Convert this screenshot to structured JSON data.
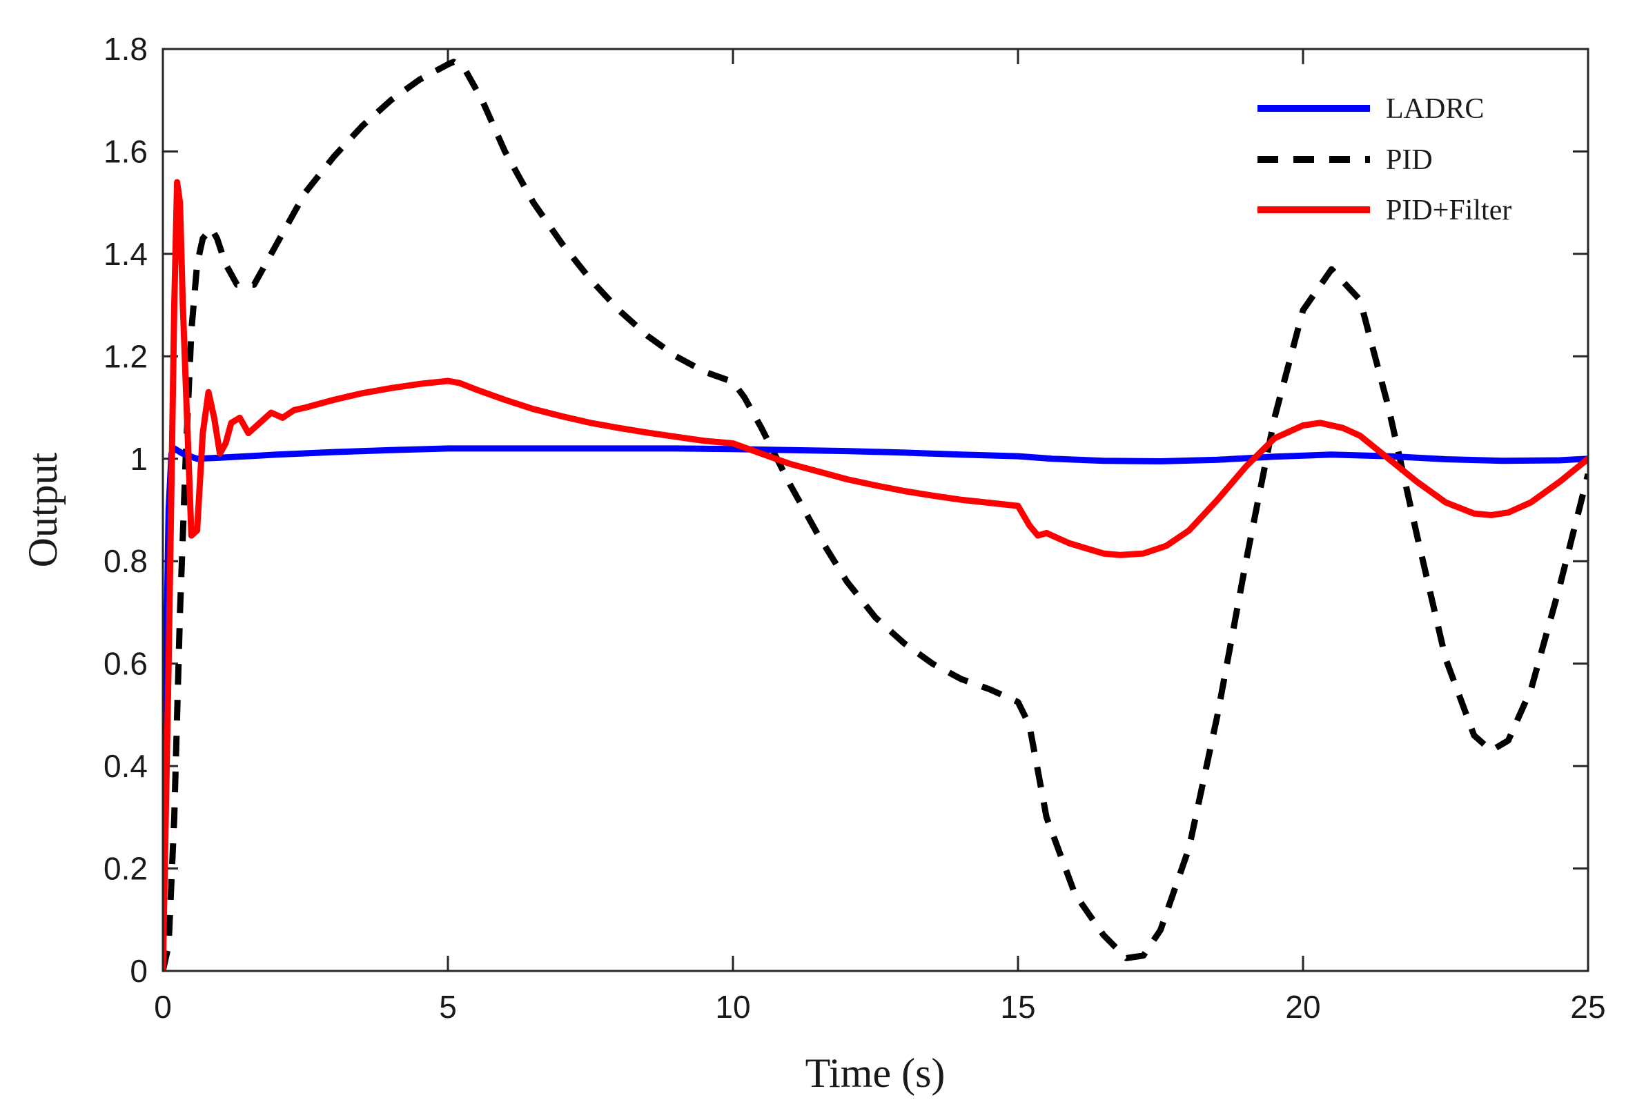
{
  "chart_data": {
    "type": "line",
    "title": "",
    "xlabel": "Time (s)",
    "ylabel": "Output",
    "xlim": [
      0,
      25
    ],
    "ylim": [
      0,
      1.8
    ],
    "xticks": [
      0,
      5,
      10,
      15,
      20,
      25
    ],
    "xtick_labels": [
      "0",
      "5",
      "10",
      "15",
      "20",
      "25"
    ],
    "yticks": [
      0,
      0.2,
      0.4,
      0.6,
      0.8,
      1,
      1.2,
      1.4,
      1.6,
      1.8
    ],
    "ytick_labels": [
      "0",
      "0.2",
      "0.4",
      "0.6",
      "0.8",
      "1",
      "1.2",
      "1.4",
      "1.6",
      "1.8"
    ],
    "grid": false,
    "legend_position": "top-right",
    "series": [
      {
        "name": "LADRC",
        "color": "#0000ff",
        "style": "solid",
        "points": [
          [
            0,
            0
          ],
          [
            0.05,
            0.55
          ],
          [
            0.1,
            0.9
          ],
          [
            0.15,
            1.01
          ],
          [
            0.2,
            1.02
          ],
          [
            0.35,
            1.01
          ],
          [
            0.6,
            1.0
          ],
          [
            1,
            1.002
          ],
          [
            2,
            1.008
          ],
          [
            3,
            1.013
          ],
          [
            4,
            1.017
          ],
          [
            5,
            1.02
          ],
          [
            7,
            1.02
          ],
          [
            9,
            1.02
          ],
          [
            10,
            1.019
          ],
          [
            11,
            1.017
          ],
          [
            12,
            1.015
          ],
          [
            13,
            1.012
          ],
          [
            14,
            1.008
          ],
          [
            15,
            1.005
          ],
          [
            15.6,
            1.0
          ],
          [
            16.5,
            0.996
          ],
          [
            17.5,
            0.995
          ],
          [
            18.5,
            0.998
          ],
          [
            19.5,
            1.004
          ],
          [
            20.5,
            1.008
          ],
          [
            21.5,
            1.005
          ],
          [
            22.5,
            0.999
          ],
          [
            23.5,
            0.996
          ],
          [
            24.5,
            0.997
          ],
          [
            25,
            1.0
          ]
        ]
      },
      {
        "name": "PID",
        "color": "#000000",
        "style": "dashed",
        "points": [
          [
            0,
            0
          ],
          [
            0.1,
            0.05
          ],
          [
            0.2,
            0.3
          ],
          [
            0.3,
            0.7
          ],
          [
            0.4,
            1.0
          ],
          [
            0.5,
            1.25
          ],
          [
            0.6,
            1.38
          ],
          [
            0.7,
            1.43
          ],
          [
            0.85,
            1.45
          ],
          [
            0.95,
            1.43
          ],
          [
            1.1,
            1.38
          ],
          [
            1.3,
            1.34
          ],
          [
            1.6,
            1.34
          ],
          [
            2.0,
            1.42
          ],
          [
            2.5,
            1.52
          ],
          [
            3.0,
            1.59
          ],
          [
            3.5,
            1.65
          ],
          [
            4.0,
            1.7
          ],
          [
            4.5,
            1.74
          ],
          [
            5.0,
            1.77
          ],
          [
            5.1,
            1.775
          ],
          [
            5.3,
            1.76
          ],
          [
            5.6,
            1.7
          ],
          [
            6.0,
            1.6
          ],
          [
            6.5,
            1.5
          ],
          [
            7.0,
            1.42
          ],
          [
            7.5,
            1.35
          ],
          [
            8.0,
            1.29
          ],
          [
            8.5,
            1.24
          ],
          [
            9.0,
            1.2
          ],
          [
            9.5,
            1.17
          ],
          [
            10.0,
            1.15
          ],
          [
            10.2,
            1.12
          ],
          [
            10.5,
            1.06
          ],
          [
            11.0,
            0.95
          ],
          [
            11.5,
            0.85
          ],
          [
            12.0,
            0.76
          ],
          [
            12.5,
            0.69
          ],
          [
            13.0,
            0.64
          ],
          [
            13.5,
            0.6
          ],
          [
            14.0,
            0.57
          ],
          [
            14.5,
            0.55
          ],
          [
            15.0,
            0.525
          ],
          [
            15.2,
            0.48
          ],
          [
            15.5,
            0.3
          ],
          [
            16.0,
            0.15
          ],
          [
            16.5,
            0.07
          ],
          [
            16.9,
            0.025
          ],
          [
            17.2,
            0.03
          ],
          [
            17.5,
            0.08
          ],
          [
            18.0,
            0.24
          ],
          [
            18.5,
            0.5
          ],
          [
            19.0,
            0.8
          ],
          [
            19.5,
            1.08
          ],
          [
            20.0,
            1.29
          ],
          [
            20.5,
            1.37
          ],
          [
            21.0,
            1.31
          ],
          [
            21.5,
            1.1
          ],
          [
            22.0,
            0.85
          ],
          [
            22.5,
            0.61
          ],
          [
            23.0,
            0.46
          ],
          [
            23.3,
            0.43
          ],
          [
            23.6,
            0.45
          ],
          [
            24.0,
            0.55
          ],
          [
            24.5,
            0.75
          ],
          [
            25.0,
            0.97
          ]
        ]
      },
      {
        "name": "PID+Filter",
        "color": "#ff0000",
        "style": "solid",
        "points": [
          [
            0,
            0
          ],
          [
            0.1,
            0.6
          ],
          [
            0.2,
            1.3
          ],
          [
            0.25,
            1.54
          ],
          [
            0.3,
            1.5
          ],
          [
            0.35,
            1.3
          ],
          [
            0.45,
            1.0
          ],
          [
            0.5,
            0.85
          ],
          [
            0.6,
            0.86
          ],
          [
            0.7,
            1.05
          ],
          [
            0.8,
            1.13
          ],
          [
            0.9,
            1.08
          ],
          [
            1.0,
            1.01
          ],
          [
            1.1,
            1.03
          ],
          [
            1.2,
            1.07
          ],
          [
            1.35,
            1.08
          ],
          [
            1.5,
            1.05
          ],
          [
            1.7,
            1.07
          ],
          [
            1.9,
            1.09
          ],
          [
            2.1,
            1.08
          ],
          [
            2.3,
            1.095
          ],
          [
            2.5,
            1.1
          ],
          [
            3.0,
            1.115
          ],
          [
            3.5,
            1.128
          ],
          [
            4.0,
            1.138
          ],
          [
            4.5,
            1.146
          ],
          [
            5.0,
            1.152
          ],
          [
            5.2,
            1.148
          ],
          [
            5.5,
            1.135
          ],
          [
            6.0,
            1.115
          ],
          [
            6.5,
            1.097
          ],
          [
            7.0,
            1.083
          ],
          [
            7.5,
            1.07
          ],
          [
            8.0,
            1.06
          ],
          [
            8.5,
            1.051
          ],
          [
            9.0,
            1.043
          ],
          [
            9.5,
            1.035
          ],
          [
            10.0,
            1.03
          ],
          [
            10.5,
            1.01
          ],
          [
            11.0,
            0.99
          ],
          [
            11.5,
            0.975
          ],
          [
            12.0,
            0.96
          ],
          [
            12.5,
            0.948
          ],
          [
            13.0,
            0.937
          ],
          [
            13.5,
            0.928
          ],
          [
            14.0,
            0.92
          ],
          [
            14.5,
            0.914
          ],
          [
            15.0,
            0.908
          ],
          [
            15.2,
            0.87
          ],
          [
            15.35,
            0.85
          ],
          [
            15.5,
            0.855
          ],
          [
            15.7,
            0.845
          ],
          [
            15.9,
            0.835
          ],
          [
            16.2,
            0.825
          ],
          [
            16.5,
            0.815
          ],
          [
            16.8,
            0.812
          ],
          [
            17.2,
            0.815
          ],
          [
            17.6,
            0.83
          ],
          [
            18.0,
            0.86
          ],
          [
            18.5,
            0.92
          ],
          [
            19.0,
            0.985
          ],
          [
            19.5,
            1.04
          ],
          [
            20.0,
            1.065
          ],
          [
            20.3,
            1.07
          ],
          [
            20.7,
            1.06
          ],
          [
            21.0,
            1.045
          ],
          [
            21.5,
            1.0
          ],
          [
            22.0,
            0.955
          ],
          [
            22.5,
            0.915
          ],
          [
            23.0,
            0.893
          ],
          [
            23.3,
            0.89
          ],
          [
            23.6,
            0.895
          ],
          [
            24.0,
            0.915
          ],
          [
            24.5,
            0.955
          ],
          [
            25.0,
            1.0
          ]
        ]
      }
    ]
  }
}
